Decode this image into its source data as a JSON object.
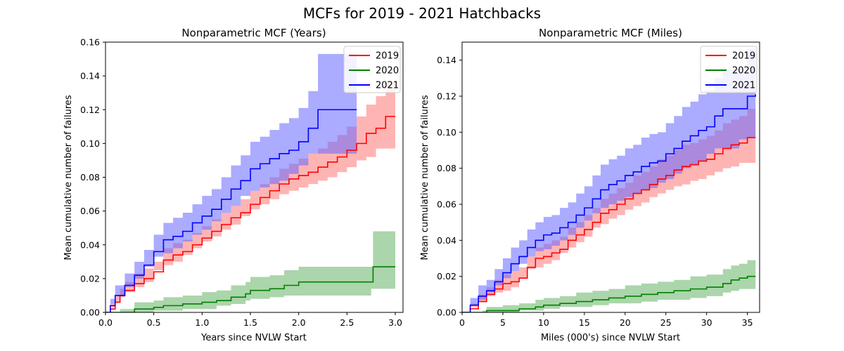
{
  "figure": {
    "suptitle": "MCFs for 2019 - 2021 Hatchbacks"
  },
  "colors": {
    "2019": "#ff0000",
    "2020": "#008000",
    "2021": "#0000ff",
    "band_2019": "#ff7777",
    "band_2020": "#66b266",
    "band_2021": "#6666ff"
  },
  "chart_data": [
    {
      "type": "line",
      "title": "Nonparametric MCF (Years)",
      "xlabel": "Years since NVLW Start",
      "ylabel": "Mean cumulative number of failures",
      "xlim": [
        0.0,
        3.08
      ],
      "ylim": [
        0.0,
        0.16
      ],
      "xticks": [
        "0.0",
        "0.5",
        "1.0",
        "1.5",
        "2.0",
        "2.5",
        "3.0"
      ],
      "yticks": [
        "0.00",
        "0.02",
        "0.04",
        "0.06",
        "0.08",
        "0.10",
        "0.12",
        "0.14",
        "0.16"
      ],
      "legend": {
        "position": "top-right",
        "entries": [
          "2019",
          "2020",
          "2021"
        ]
      },
      "series": [
        {
          "name": "2019",
          "color": "#ff0000",
          "x": [
            0.0,
            0.05,
            0.1,
            0.15,
            0.2,
            0.3,
            0.4,
            0.5,
            0.6,
            0.7,
            0.8,
            0.9,
            1.0,
            1.1,
            1.2,
            1.3,
            1.4,
            1.5,
            1.6,
            1.7,
            1.8,
            1.9,
            2.0,
            2.1,
            2.2,
            2.3,
            2.4,
            2.5,
            2.6,
            2.7,
            2.8,
            2.9,
            3.0
          ],
          "y": [
            0.0,
            0.002,
            0.006,
            0.01,
            0.013,
            0.017,
            0.02,
            0.024,
            0.031,
            0.034,
            0.036,
            0.04,
            0.044,
            0.048,
            0.052,
            0.056,
            0.059,
            0.064,
            0.068,
            0.072,
            0.076,
            0.079,
            0.081,
            0.083,
            0.086,
            0.089,
            0.092,
            0.096,
            0.1,
            0.106,
            0.109,
            0.116,
            0.116
          ],
          "lower": [
            0.0,
            0.0,
            0.003,
            0.006,
            0.009,
            0.012,
            0.015,
            0.018,
            0.025,
            0.028,
            0.03,
            0.034,
            0.038,
            0.042,
            0.045,
            0.049,
            0.052,
            0.057,
            0.061,
            0.064,
            0.067,
            0.07,
            0.072,
            0.074,
            0.076,
            0.078,
            0.08,
            0.083,
            0.086,
            0.09,
            0.092,
            0.097,
            0.097
          ],
          "upper": [
            0.0,
            0.005,
            0.01,
            0.014,
            0.018,
            0.023,
            0.026,
            0.03,
            0.038,
            0.041,
            0.043,
            0.047,
            0.051,
            0.055,
            0.059,
            0.063,
            0.067,
            0.072,
            0.076,
            0.08,
            0.085,
            0.088,
            0.091,
            0.094,
            0.097,
            0.101,
            0.105,
            0.11,
            0.116,
            0.123,
            0.128,
            0.136,
            0.136
          ]
        },
        {
          "name": "2020",
          "color": "#008000",
          "x": [
            0.0,
            0.15,
            0.3,
            0.5,
            0.6,
            0.8,
            1.0,
            1.15,
            1.3,
            1.45,
            1.5,
            1.7,
            1.85,
            2.0,
            2.3,
            2.5,
            2.75,
            2.77,
            3.0
          ],
          "y": [
            0.0,
            0.0,
            0.002,
            0.003,
            0.004,
            0.005,
            0.006,
            0.007,
            0.009,
            0.011,
            0.013,
            0.014,
            0.016,
            0.018,
            0.018,
            0.018,
            0.018,
            0.027,
            0.027
          ],
          "lower": [
            0.0,
            0.0,
            0.0,
            0.0,
            0.001,
            0.001,
            0.002,
            0.002,
            0.004,
            0.005,
            0.007,
            0.008,
            0.009,
            0.01,
            0.01,
            0.01,
            0.01,
            0.014,
            0.014
          ],
          "upper": [
            0.0,
            0.002,
            0.006,
            0.007,
            0.009,
            0.01,
            0.012,
            0.013,
            0.016,
            0.018,
            0.021,
            0.022,
            0.025,
            0.027,
            0.027,
            0.027,
            0.027,
            0.048,
            0.048
          ]
        },
        {
          "name": "2021",
          "color": "#0000ff",
          "x": [
            0.0,
            0.05,
            0.1,
            0.2,
            0.3,
            0.4,
            0.5,
            0.6,
            0.7,
            0.8,
            0.9,
            1.0,
            1.1,
            1.2,
            1.3,
            1.4,
            1.5,
            1.6,
            1.7,
            1.8,
            1.9,
            2.0,
            2.1,
            2.2,
            2.3,
            2.4,
            2.6
          ],
          "y": [
            0.0,
            0.004,
            0.01,
            0.016,
            0.022,
            0.028,
            0.036,
            0.043,
            0.045,
            0.048,
            0.053,
            0.057,
            0.061,
            0.067,
            0.073,
            0.078,
            0.085,
            0.088,
            0.091,
            0.094,
            0.096,
            0.101,
            0.109,
            0.12,
            0.12,
            0.12,
            0.12
          ],
          "lower": [
            0.0,
            0.0,
            0.005,
            0.01,
            0.015,
            0.02,
            0.027,
            0.033,
            0.035,
            0.038,
            0.042,
            0.046,
            0.049,
            0.054,
            0.059,
            0.063,
            0.069,
            0.072,
            0.074,
            0.076,
            0.078,
            0.082,
            0.087,
            0.094,
            0.094,
            0.094,
            0.094
          ],
          "upper": [
            0.0,
            0.008,
            0.016,
            0.023,
            0.03,
            0.037,
            0.046,
            0.053,
            0.056,
            0.059,
            0.064,
            0.069,
            0.073,
            0.08,
            0.087,
            0.093,
            0.101,
            0.104,
            0.108,
            0.112,
            0.115,
            0.121,
            0.131,
            0.153,
            0.153,
            0.153,
            0.153
          ]
        }
      ]
    },
    {
      "type": "line",
      "title": "Nonparametric MCF (Miles)",
      "xlabel": "Miles (000's) since NVLW Start",
      "ylabel": "Mean cumulative number of failures",
      "xlim": [
        0,
        36.5
      ],
      "ylim": [
        0.0,
        0.15
      ],
      "xticks": [
        "0",
        "5",
        "10",
        "15",
        "20",
        "25",
        "30",
        "35"
      ],
      "yticks": [
        "0.00",
        "0.02",
        "0.04",
        "0.06",
        "0.08",
        "0.10",
        "0.12",
        "0.14"
      ],
      "legend": {
        "position": "top-right",
        "entries": [
          "2019",
          "2020",
          "2021"
        ]
      },
      "series": [
        {
          "name": "2019",
          "color": "#ff0000",
          "x": [
            0,
            1,
            2,
            3,
            4,
            5,
            6,
            7,
            8,
            9,
            10,
            11,
            12,
            13,
            14,
            15,
            16,
            17,
            18,
            19,
            20,
            21,
            22,
            23,
            24,
            25,
            26,
            27,
            28,
            29,
            30,
            31,
            32,
            33,
            34,
            35,
            36
          ],
          "y": [
            0.0,
            0.002,
            0.006,
            0.01,
            0.013,
            0.016,
            0.017,
            0.019,
            0.025,
            0.03,
            0.031,
            0.033,
            0.035,
            0.04,
            0.043,
            0.046,
            0.05,
            0.055,
            0.057,
            0.06,
            0.063,
            0.066,
            0.068,
            0.071,
            0.074,
            0.076,
            0.079,
            0.081,
            0.082,
            0.084,
            0.085,
            0.088,
            0.091,
            0.093,
            0.094,
            0.097,
            0.097
          ],
          "lower": [
            0.0,
            0.0,
            0.003,
            0.006,
            0.009,
            0.011,
            0.012,
            0.014,
            0.019,
            0.024,
            0.025,
            0.027,
            0.029,
            0.033,
            0.036,
            0.039,
            0.042,
            0.047,
            0.049,
            0.052,
            0.054,
            0.057,
            0.059,
            0.061,
            0.064,
            0.066,
            0.068,
            0.07,
            0.071,
            0.073,
            0.074,
            0.076,
            0.078,
            0.08,
            0.081,
            0.083,
            0.083
          ],
          "upper": [
            0.0,
            0.005,
            0.01,
            0.014,
            0.018,
            0.021,
            0.023,
            0.025,
            0.031,
            0.036,
            0.038,
            0.04,
            0.042,
            0.047,
            0.05,
            0.054,
            0.058,
            0.063,
            0.066,
            0.069,
            0.072,
            0.076,
            0.078,
            0.081,
            0.085,
            0.087,
            0.09,
            0.093,
            0.094,
            0.096,
            0.098,
            0.101,
            0.105,
            0.107,
            0.109,
            0.113,
            0.113
          ]
        },
        {
          "name": "2020",
          "color": "#008000",
          "x": [
            0,
            2.5,
            3,
            5,
            7,
            9,
            10,
            12,
            14,
            16,
            18,
            20,
            22,
            24,
            26,
            28,
            30,
            32,
            33,
            34,
            35,
            36
          ],
          "y": [
            0.0,
            0.0,
            0.001,
            0.001,
            0.002,
            0.003,
            0.004,
            0.005,
            0.006,
            0.007,
            0.008,
            0.009,
            0.01,
            0.011,
            0.012,
            0.013,
            0.014,
            0.016,
            0.018,
            0.019,
            0.02,
            0.02
          ],
          "lower": [
            0.0,
            0.0,
            0.0,
            0.0,
            0.0,
            0.001,
            0.001,
            0.002,
            0.003,
            0.003,
            0.004,
            0.005,
            0.005,
            0.006,
            0.007,
            0.007,
            0.008,
            0.009,
            0.011,
            0.012,
            0.013,
            0.013
          ],
          "upper": [
            0.0,
            0.001,
            0.003,
            0.004,
            0.005,
            0.007,
            0.008,
            0.009,
            0.011,
            0.012,
            0.013,
            0.015,
            0.016,
            0.017,
            0.018,
            0.02,
            0.021,
            0.024,
            0.026,
            0.027,
            0.029,
            0.029
          ]
        },
        {
          "name": "2021",
          "color": "#0000ff",
          "x": [
            0,
            1,
            2,
            3,
            4,
            5,
            6,
            7,
            8,
            9,
            10,
            11,
            12,
            13,
            14,
            15,
            16,
            17,
            18,
            19,
            20,
            21,
            22,
            23,
            24,
            25,
            26,
            27,
            28,
            29,
            30,
            31,
            32,
            33,
            34,
            35,
            36
          ],
          "y": [
            0.0,
            0.004,
            0.009,
            0.012,
            0.017,
            0.022,
            0.027,
            0.031,
            0.036,
            0.04,
            0.043,
            0.044,
            0.047,
            0.05,
            0.054,
            0.058,
            0.063,
            0.068,
            0.071,
            0.073,
            0.076,
            0.078,
            0.081,
            0.083,
            0.084,
            0.088,
            0.091,
            0.095,
            0.098,
            0.101,
            0.103,
            0.109,
            0.113,
            0.113,
            0.113,
            0.12,
            0.121
          ],
          "lower": [
            0.0,
            0.0,
            0.004,
            0.007,
            0.011,
            0.015,
            0.019,
            0.023,
            0.027,
            0.031,
            0.034,
            0.035,
            0.037,
            0.04,
            0.043,
            0.047,
            0.051,
            0.055,
            0.058,
            0.06,
            0.062,
            0.064,
            0.066,
            0.068,
            0.069,
            0.072,
            0.074,
            0.077,
            0.08,
            0.082,
            0.084,
            0.088,
            0.091,
            0.091,
            0.091,
            0.096,
            0.097
          ],
          "upper": [
            0.0,
            0.008,
            0.015,
            0.018,
            0.024,
            0.03,
            0.036,
            0.04,
            0.046,
            0.05,
            0.053,
            0.054,
            0.058,
            0.061,
            0.066,
            0.07,
            0.076,
            0.082,
            0.085,
            0.087,
            0.091,
            0.093,
            0.097,
            0.099,
            0.1,
            0.105,
            0.109,
            0.114,
            0.117,
            0.121,
            0.123,
            0.13,
            0.135,
            0.135,
            0.135,
            0.146,
            0.148
          ]
        }
      ]
    }
  ]
}
